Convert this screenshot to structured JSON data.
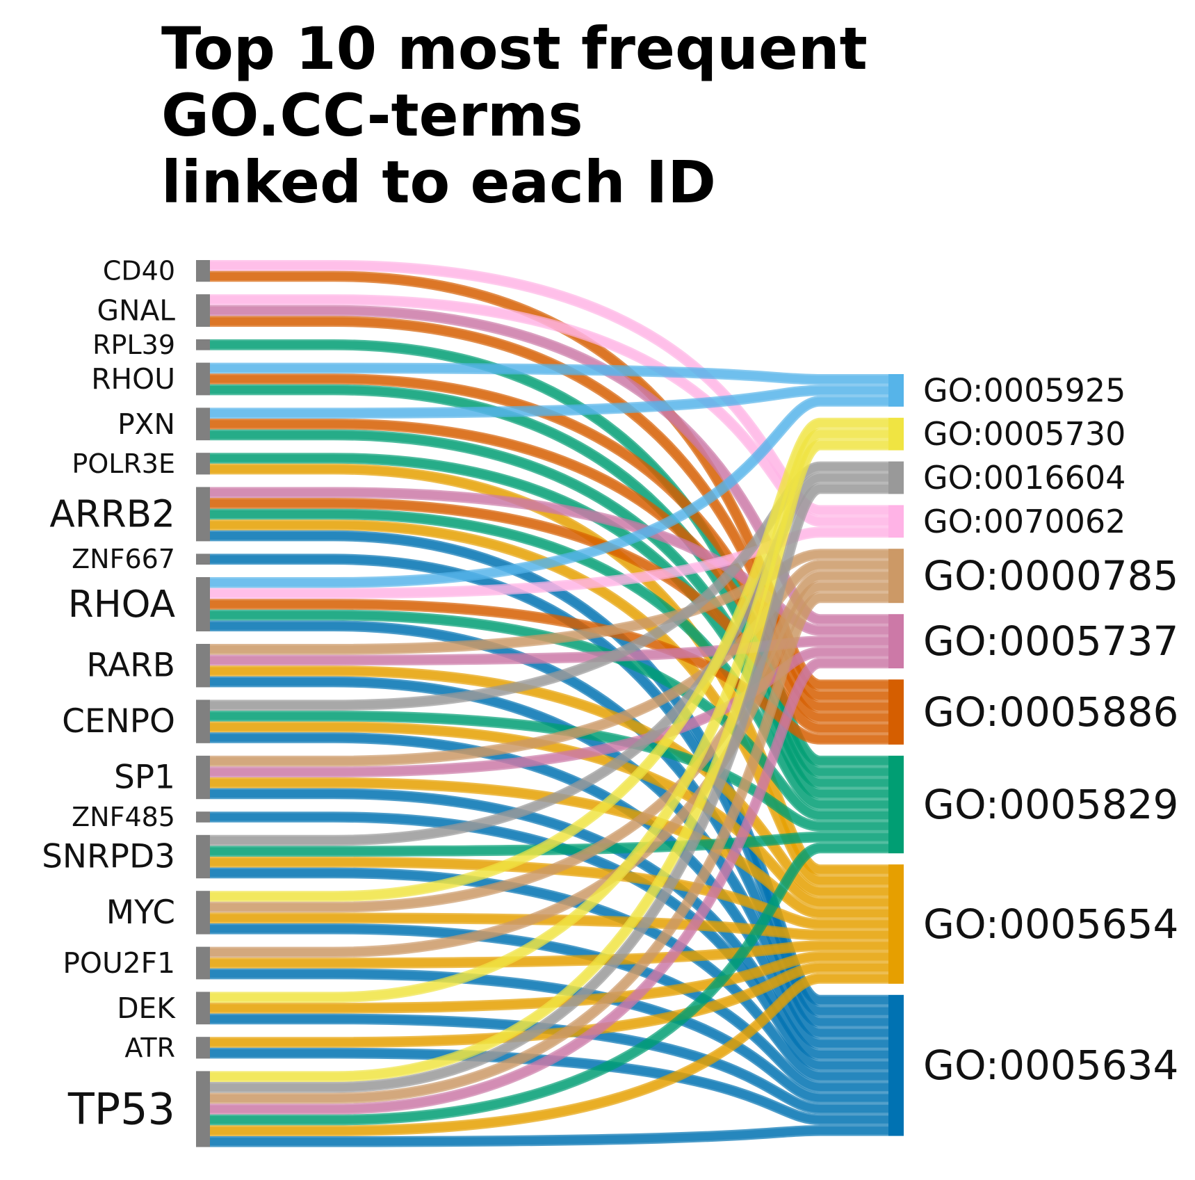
{
  "title_lines": [
    "Top 10 most frequent",
    "GO.CC-terms",
    "linked to each ID"
  ],
  "colors": {
    "id_node": "#808080",
    "GO:0005925": "#56B4E9",
    "GO:0005730": "#F0E442",
    "GO:0016604": "#999999",
    "GO:0070062": "#FFB3E6",
    "GO:0000785": "#CC9966",
    "GO:0005737": "#CC79A7",
    "GO:0005886": "#D55E00",
    "GO:0005829": "#009E73",
    "GO:0005654": "#E69F00",
    "GO:0005634": "#0072B2"
  },
  "ids": [
    "CD40",
    "GNAL",
    "RPL39",
    "RHOU",
    "PXN",
    "POLR3E",
    "ARRB2",
    "ZNF667",
    "RHOA",
    "RARB",
    "CENPO",
    "SP1",
    "ZNF485",
    "SNRPD3",
    "MYC",
    "POU2F1",
    "DEK",
    "ATR",
    "TP53"
  ],
  "go_terms": [
    "GO:0005925",
    "GO:0005730",
    "GO:0016604",
    "GO:0070062",
    "GO:0000785",
    "GO:0005737",
    "GO:0005886",
    "GO:0005829",
    "GO:0005654",
    "GO:0005634"
  ],
  "links": {
    "CD40": [
      "GO:0070062",
      "GO:0005886"
    ],
    "GNAL": [
      "GO:0070062",
      "GO:0005737",
      "GO:0005886"
    ],
    "RPL39": [
      "GO:0005829"
    ],
    "RHOU": [
      "GO:0005925",
      "GO:0005886",
      "GO:0005829"
    ],
    "PXN": [
      "GO:0005925",
      "GO:0005886",
      "GO:0005829"
    ],
    "POLR3E": [
      "GO:0005829",
      "GO:0005654"
    ],
    "ARRB2": [
      "GO:0005737",
      "GO:0005886",
      "GO:0005829",
      "GO:0005654",
      "GO:0005634"
    ],
    "ZNF667": [
      "GO:0005634"
    ],
    "RHOA": [
      "GO:0005925",
      "GO:0070062",
      "GO:0005886",
      "GO:0005829",
      "GO:0005634"
    ],
    "RARB": [
      "GO:0000785",
      "GO:0005737",
      "GO:0005654",
      "GO:0005634"
    ],
    "CENPO": [
      "GO:0016604",
      "GO:0005829",
      "GO:0005654",
      "GO:0005634"
    ],
    "SP1": [
      "GO:0000785",
      "GO:0005737",
      "GO:0005654",
      "GO:0005634"
    ],
    "ZNF485": [
      "GO:0005634"
    ],
    "SNRPD3": [
      "GO:0016604",
      "GO:0005829",
      "GO:0005654",
      "GO:0005634"
    ],
    "MYC": [
      "GO:0005730",
      "GO:0000785",
      "GO:0005654",
      "GO:0005634"
    ],
    "POU2F1": [
      "GO:0000785",
      "GO:0005654",
      "GO:0005634"
    ],
    "DEK": [
      "GO:0005730",
      "GO:0005654",
      "GO:0005634"
    ],
    "ATR": [
      "GO:0005654",
      "GO:0005634"
    ],
    "TP53": [
      "GO:0005730",
      "GO:0016604",
      "GO:0000785",
      "GO:0005737",
      "GO:0005829",
      "GO:0005654",
      "GO:0005634"
    ]
  }
}
